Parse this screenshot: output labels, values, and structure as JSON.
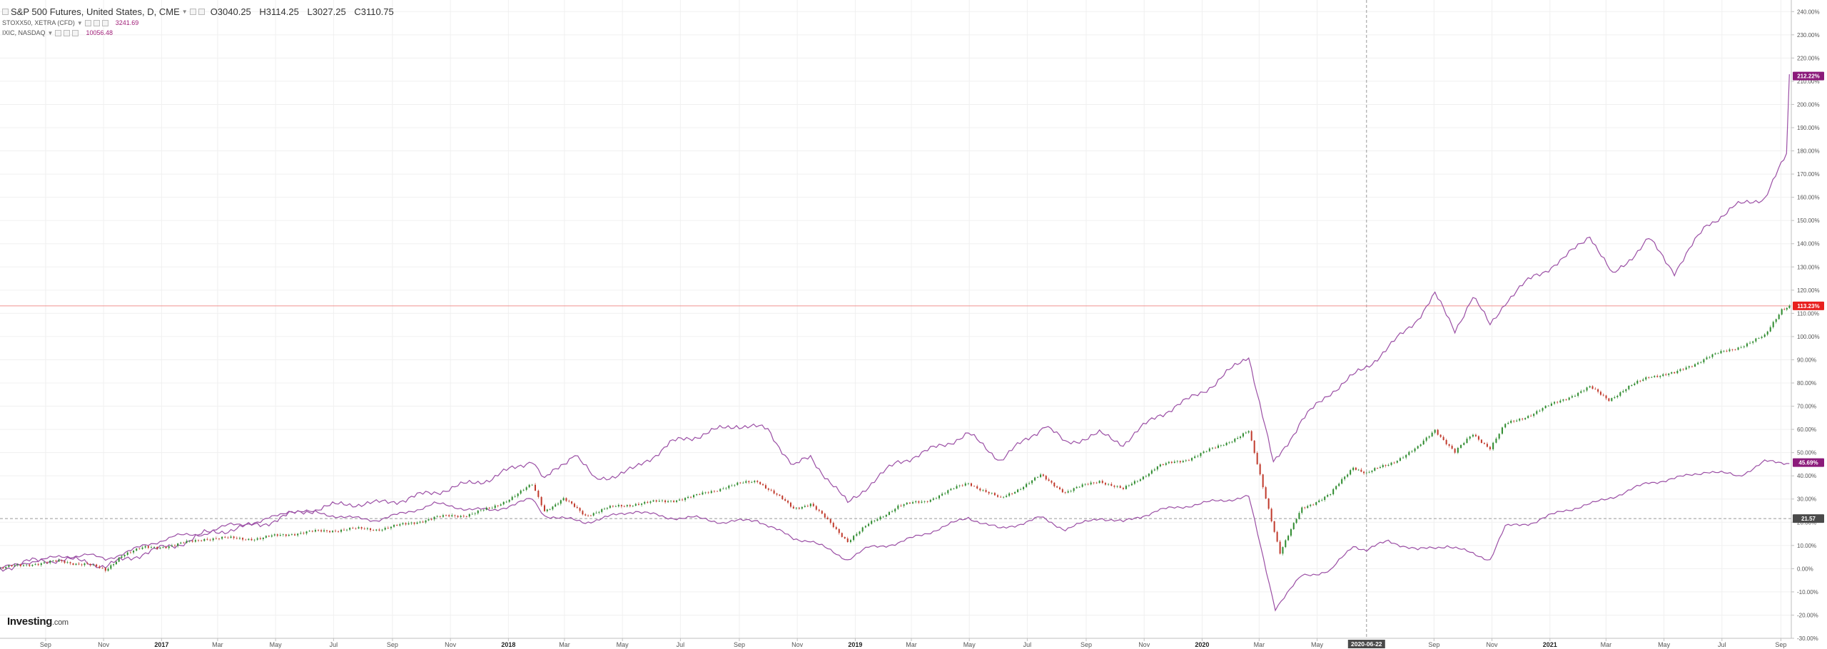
{
  "legend": {
    "main_title": "S&P 500 Futures, United States, D, CME",
    "open": "O3040.25",
    "high": "H3114.25",
    "low": "L3027.25",
    "close": "C3110.75",
    "series2_name": "STOXX50, XETRA (CFD)",
    "series2_value": "3241.69",
    "series3_name": "IXIC, NASDAQ",
    "series3_value": "10056.48"
  },
  "logo": {
    "brand": "Investing",
    "suffix": ".com"
  },
  "chart_data": {
    "type": "line",
    "y_axis": {
      "unit": "%",
      "range": [
        -30,
        245
      ],
      "ticks": [
        -30,
        -20,
        -10,
        0,
        10,
        20,
        30,
        40,
        50,
        60,
        70,
        80,
        90,
        100,
        110,
        120,
        130,
        140,
        150,
        160,
        170,
        180,
        190,
        200,
        210,
        220,
        230,
        240
      ],
      "tick_labels": [
        "-30.00%",
        "-20.00%",
        "-10.00%",
        "0.00%",
        "10.00%",
        "20.00%",
        "30.00%",
        "40.00%",
        "50.00%",
        "60.00%",
        "70.00%",
        "80.00%",
        "90.00%",
        "100.00%",
        "110.00%",
        "120.00%",
        "130.00%",
        "140.00%",
        "150.00%",
        "160.00%",
        "170.00%",
        "180.00%",
        "190.00%",
        "200.00%",
        "210.00%",
        "220.00%",
        "230.00%",
        "240.00%"
      ],
      "position": "right"
    },
    "x_axis": {
      "range": [
        "2016-07-15",
        "2021-09-12"
      ],
      "ticks": [
        {
          "date": "2016-09-01",
          "label": "Sep"
        },
        {
          "date": "2016-11-01",
          "label": "Nov"
        },
        {
          "date": "2017-01-01",
          "label": "2017",
          "bold": true
        },
        {
          "date": "2017-03-01",
          "label": "Mar"
        },
        {
          "date": "2017-05-01",
          "label": "May"
        },
        {
          "date": "2017-07-01",
          "label": "Jul"
        },
        {
          "date": "2017-09-01",
          "label": "Sep"
        },
        {
          "date": "2017-11-01",
          "label": "Nov"
        },
        {
          "date": "2018-01-01",
          "label": "2018",
          "bold": true
        },
        {
          "date": "2018-03-01",
          "label": "Mar"
        },
        {
          "date": "2018-05-01",
          "label": "May"
        },
        {
          "date": "2018-07-01",
          "label": "Jul"
        },
        {
          "date": "2018-09-01",
          "label": "Sep"
        },
        {
          "date": "2018-11-01",
          "label": "Nov"
        },
        {
          "date": "2019-01-01",
          "label": "2019",
          "bold": true
        },
        {
          "date": "2019-03-01",
          "label": "Mar"
        },
        {
          "date": "2019-05-01",
          "label": "May"
        },
        {
          "date": "2019-07-01",
          "label": "Jul"
        },
        {
          "date": "2019-09-01",
          "label": "Sep"
        },
        {
          "date": "2019-11-01",
          "label": "Nov"
        },
        {
          "date": "2020-01-01",
          "label": "2020",
          "bold": true
        },
        {
          "date": "2020-03-01",
          "label": "Mar"
        },
        {
          "date": "2020-05-01",
          "label": "May"
        },
        {
          "date": "2020-09-01",
          "label": "Sep"
        },
        {
          "date": "2020-11-01",
          "label": "Nov"
        },
        {
          "date": "2021-01-01",
          "label": "2021",
          "bold": true
        },
        {
          "date": "2021-03-01",
          "label": "Mar"
        },
        {
          "date": "2021-05-01",
          "label": "May"
        },
        {
          "date": "2021-07-01",
          "label": "Jul"
        },
        {
          "date": "2021-09-01",
          "label": "Sep"
        }
      ]
    },
    "grid": true,
    "crosshair": {
      "date": "2020-06-22",
      "date_label": "2020-06-22",
      "value": 21.57,
      "value_label": "21.57"
    },
    "price_line": {
      "value": 113.23,
      "color": "#f0928f"
    },
    "colors": {
      "up": "#2e8b2e",
      "down": "#c0392b",
      "compare": "#9b4fa5",
      "badge_purple": "#8b1a7a",
      "badge_red": "#e8201e"
    },
    "series": [
      {
        "name": "S&P 500 Futures, United States, D, CME",
        "style": "candles",
        "end_label": "113.23%",
        "points": [
          [
            "2016-07-15",
            0
          ],
          [
            "2016-08-15",
            2
          ],
          [
            "2016-09-15",
            3
          ],
          [
            "2016-10-15",
            2
          ],
          [
            "2016-11-03",
            -1
          ],
          [
            "2016-11-20",
            6
          ],
          [
            "2016-12-15",
            9
          ],
          [
            "2017-01-15",
            10
          ],
          [
            "2017-02-15",
            13
          ],
          [
            "2017-03-15",
            13
          ],
          [
            "2017-04-15",
            13
          ],
          [
            "2017-05-15",
            15
          ],
          [
            "2017-06-15",
            16
          ],
          [
            "2017-07-15",
            17
          ],
          [
            "2017-08-15",
            17
          ],
          [
            "2017-09-15",
            19
          ],
          [
            "2017-10-15",
            22
          ],
          [
            "2017-11-15",
            23
          ],
          [
            "2017-12-15",
            26
          ],
          [
            "2018-01-26",
            36
          ],
          [
            "2018-02-08",
            25
          ],
          [
            "2018-02-28",
            30
          ],
          [
            "2018-03-23",
            23
          ],
          [
            "2018-04-15",
            26
          ],
          [
            "2018-05-15",
            28
          ],
          [
            "2018-06-15",
            29
          ],
          [
            "2018-07-15",
            31
          ],
          [
            "2018-08-15",
            35
          ],
          [
            "2018-09-20",
            38
          ],
          [
            "2018-10-28",
            26
          ],
          [
            "2018-11-15",
            28
          ],
          [
            "2018-12-24",
            12
          ],
          [
            "2019-01-15",
            19
          ],
          [
            "2019-02-15",
            27
          ],
          [
            "2019-03-15",
            29
          ],
          [
            "2019-04-30",
            37
          ],
          [
            "2019-06-03",
            30
          ],
          [
            "2019-07-15",
            40
          ],
          [
            "2019-08-10",
            33
          ],
          [
            "2019-09-15",
            38
          ],
          [
            "2019-10-10",
            34
          ],
          [
            "2019-11-15",
            44
          ],
          [
            "2019-12-15",
            47
          ],
          [
            "2020-01-15",
            52
          ],
          [
            "2020-02-19",
            59
          ],
          [
            "2020-03-23",
            7
          ],
          [
            "2020-04-15",
            26
          ],
          [
            "2020-05-15",
            32
          ],
          [
            "2020-06-08",
            44
          ],
          [
            "2020-06-22",
            41
          ],
          [
            "2020-07-15",
            45
          ],
          [
            "2020-08-15",
            52
          ],
          [
            "2020-09-02",
            60
          ],
          [
            "2020-09-23",
            50
          ],
          [
            "2020-10-12",
            58
          ],
          [
            "2020-10-30",
            52
          ],
          [
            "2020-11-15",
            62
          ],
          [
            "2020-12-15",
            67
          ],
          [
            "2021-01-15",
            73
          ],
          [
            "2021-02-12",
            78
          ],
          [
            "2021-03-04",
            73
          ],
          [
            "2021-04-15",
            83
          ],
          [
            "2021-05-12",
            84
          ],
          [
            "2021-06-15",
            91
          ],
          [
            "2021-07-15",
            95
          ],
          [
            "2021-08-15",
            100
          ],
          [
            "2021-09-02",
            112
          ],
          [
            "2021-09-10",
            113.23
          ]
        ]
      },
      {
        "name": "IXIC, NASDAQ",
        "style": "line",
        "end_label": "212.22%",
        "points": [
          [
            "2016-07-15",
            0
          ],
          [
            "2016-08-15",
            3
          ],
          [
            "2016-09-15",
            4
          ],
          [
            "2016-10-15",
            3
          ],
          [
            "2016-11-03",
            1
          ],
          [
            "2016-12-15",
            7
          ],
          [
            "2017-01-15",
            10
          ],
          [
            "2017-02-15",
            15
          ],
          [
            "2017-03-15",
            17
          ],
          [
            "2017-04-15",
            19
          ],
          [
            "2017-05-15",
            23
          ],
          [
            "2017-06-15",
            26
          ],
          [
            "2017-07-15",
            28
          ],
          [
            "2017-08-15",
            28
          ],
          [
            "2017-09-15",
            30
          ],
          [
            "2017-10-15",
            33
          ],
          [
            "2017-11-15",
            36
          ],
          [
            "2017-12-15",
            39
          ],
          [
            "2018-01-26",
            47
          ],
          [
            "2018-02-08",
            38
          ],
          [
            "2018-03-12",
            50
          ],
          [
            "2018-04-02",
            38
          ],
          [
            "2018-05-15",
            43
          ],
          [
            "2018-06-20",
            54
          ],
          [
            "2018-07-25",
            58
          ],
          [
            "2018-08-29",
            62
          ],
          [
            "2018-10-01",
            60
          ],
          [
            "2018-10-28",
            44
          ],
          [
            "2018-11-15",
            48
          ],
          [
            "2018-12-24",
            28
          ],
          [
            "2019-01-15",
            36
          ],
          [
            "2019-02-15",
            46
          ],
          [
            "2019-03-15",
            50
          ],
          [
            "2019-04-30",
            58
          ],
          [
            "2019-06-03",
            47
          ],
          [
            "2019-07-20",
            62
          ],
          [
            "2019-08-10",
            54
          ],
          [
            "2019-09-15",
            58
          ],
          [
            "2019-10-10",
            54
          ],
          [
            "2019-11-15",
            66
          ],
          [
            "2019-12-15",
            72
          ],
          [
            "2020-01-15",
            80
          ],
          [
            "2020-02-19",
            92
          ],
          [
            "2020-03-16",
            45
          ],
          [
            "2020-04-15",
            64
          ],
          [
            "2020-05-15",
            76
          ],
          [
            "2020-06-22",
            87
          ],
          [
            "2020-07-15",
            95
          ],
          [
            "2020-08-15",
            108
          ],
          [
            "2020-09-02",
            118
          ],
          [
            "2020-09-23",
            103
          ],
          [
            "2020-10-12",
            117
          ],
          [
            "2020-10-30",
            105
          ],
          [
            "2020-11-15",
            115
          ],
          [
            "2020-12-15",
            126
          ],
          [
            "2021-01-15",
            133
          ],
          [
            "2021-02-12",
            144
          ],
          [
            "2021-03-08",
            126
          ],
          [
            "2021-04-15",
            142
          ],
          [
            "2021-05-12",
            128
          ],
          [
            "2021-06-15",
            148
          ],
          [
            "2021-07-15",
            156
          ],
          [
            "2021-08-15",
            160
          ],
          [
            "2021-09-07",
            178
          ],
          [
            "2021-09-10",
            212.22
          ]
        ]
      },
      {
        "name": "STOXX50, XETRA (CFD)",
        "style": "line",
        "end_label": "45.69%",
        "points": [
          [
            "2016-07-15",
            0
          ],
          [
            "2016-08-15",
            3
          ],
          [
            "2016-09-15",
            5
          ],
          [
            "2016-10-15",
            6
          ],
          [
            "2016-11-03",
            4
          ],
          [
            "2016-12-15",
            10
          ],
          [
            "2017-01-15",
            14
          ],
          [
            "2017-02-15",
            15
          ],
          [
            "2017-03-15",
            19
          ],
          [
            "2017-04-15",
            20
          ],
          [
            "2017-05-15",
            25
          ],
          [
            "2017-06-15",
            24
          ],
          [
            "2017-07-15",
            22
          ],
          [
            "2017-08-15",
            21
          ],
          [
            "2017-09-15",
            24
          ],
          [
            "2017-10-15",
            28
          ],
          [
            "2017-11-15",
            26
          ],
          [
            "2017-12-15",
            25
          ],
          [
            "2018-01-26",
            30
          ],
          [
            "2018-02-08",
            23
          ],
          [
            "2018-03-23",
            20
          ],
          [
            "2018-05-15",
            25
          ],
          [
            "2018-06-15",
            22
          ],
          [
            "2018-07-15",
            22
          ],
          [
            "2018-08-15",
            20
          ],
          [
            "2018-09-20",
            21
          ],
          [
            "2018-10-28",
            13
          ],
          [
            "2018-11-15",
            12
          ],
          [
            "2018-12-24",
            4
          ],
          [
            "2019-01-15",
            9
          ],
          [
            "2019-02-15",
            11
          ],
          [
            "2019-03-15",
            15
          ],
          [
            "2019-04-30",
            22
          ],
          [
            "2019-06-03",
            17
          ],
          [
            "2019-07-15",
            22
          ],
          [
            "2019-08-10",
            17
          ],
          [
            "2019-09-15",
            22
          ],
          [
            "2019-10-10",
            20
          ],
          [
            "2019-11-15",
            25
          ],
          [
            "2019-12-15",
            27
          ],
          [
            "2020-01-15",
            29
          ],
          [
            "2020-02-19",
            31
          ],
          [
            "2020-03-18",
            -17
          ],
          [
            "2020-04-15",
            -3
          ],
          [
            "2020-05-15",
            -1
          ],
          [
            "2020-06-08",
            10
          ],
          [
            "2020-06-22",
            8
          ],
          [
            "2020-07-15",
            12
          ],
          [
            "2020-08-15",
            8
          ],
          [
            "2020-09-15",
            10
          ],
          [
            "2020-10-30",
            4
          ],
          [
            "2020-11-15",
            18
          ],
          [
            "2020-12-15",
            20
          ],
          [
            "2021-01-15",
            25
          ],
          [
            "2021-02-15",
            28
          ],
          [
            "2021-03-15",
            32
          ],
          [
            "2021-04-15",
            37
          ],
          [
            "2021-05-15",
            39
          ],
          [
            "2021-06-15",
            42
          ],
          [
            "2021-07-19",
            40
          ],
          [
            "2021-08-15",
            46
          ],
          [
            "2021-09-10",
            45.69
          ]
        ]
      }
    ]
  }
}
